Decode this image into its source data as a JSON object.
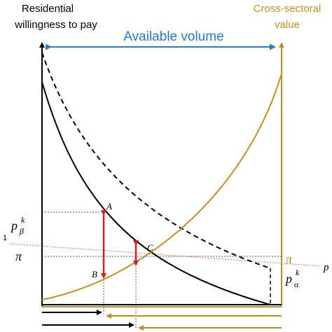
{
  "labels": {
    "left_axis_line1": "Residential",
    "left_axis_line2": "willingness to pay",
    "right_axis_line1": "Cross-sectoral",
    "right_axis_line2": "value",
    "available_volume": "Available volume",
    "point_a": "A",
    "point_b": "B",
    "point_c": "C",
    "price_pi_left": "π",
    "price_pi_right": "π",
    "p_beta_base": "p",
    "p_beta_sub": "β",
    "p_beta_sup": "k",
    "p_alpha_base": "p",
    "p_alpha_sub": "α",
    "p_alpha_sup": "k",
    "cut_left": "1",
    "cut_right": "p"
  },
  "colors": {
    "black": "#000000",
    "gold": "#c09020",
    "blue": "#2878c8",
    "red": "#d42020",
    "pink_dotted": "#e26a6a",
    "grid_dotted": "#555555"
  }
}
